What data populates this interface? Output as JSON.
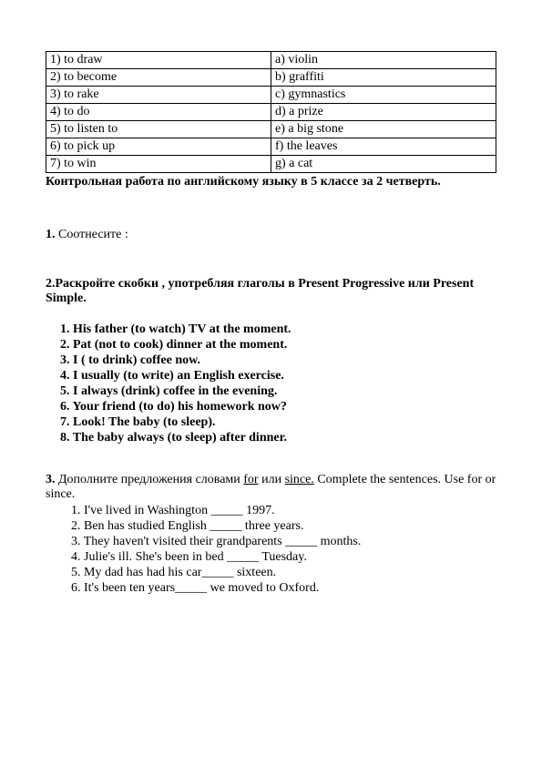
{
  "match_table": {
    "columns": [
      "left",
      "right"
    ],
    "rows": [
      [
        "1) to draw",
        "a) violin"
      ],
      [
        "2) to become",
        "b) graffiti"
      ],
      [
        "3) to rake",
        "c) gymnastics"
      ],
      [
        "4) to do",
        "d) a prize"
      ],
      [
        "5) to listen to",
        "e) a big stone"
      ],
      [
        "6) to pick up",
        "f) the leaves"
      ],
      [
        "7) to win",
        "g) a cat"
      ]
    ],
    "border_color": "#000000",
    "font_size": 14
  },
  "title": "Контрольная работа по английскому языку в 5 классе за 2 четверть.",
  "task1": {
    "num": "1.",
    "text": " Соотнесите :"
  },
  "task2": {
    "intro_a": "2.Раскройте скобки , употребляя глаголы в Present Progressive или Present",
    "intro_b": "Simple.",
    "items": [
      "1. His father (to watch) TV at the moment.",
      "2. Pat (not to cook) dinner at the moment.",
      "3. I ( to drink) coffee now.",
      "4. I usually (to write) an English exercise.",
      " 5. I always (drink) coffee in the evening.",
      "6. Your friend (to do) his homework  now?",
      "7. Look! The baby  (to sleep).",
      "8. The baby always (to sleep) after dinner."
    ]
  },
  "task3": {
    "num": "3.",
    "intro_pre": " Дополните предложения словами ",
    "word_for": "for",
    "intro_mid": " или ",
    "word_since": "since.",
    "intro_post": " Complete the sentences. Use for or since.",
    "items": [
      "1.  I've lived in Washington _____ 1997.",
      "2.  Ben has studied English _____ three years.",
      "3.  They haven't visited their grandparents _____ months.",
      "4.  Julie's ill. She's been in bed _____ Tuesday.",
      "5.  My dad has had his car_____ sixteen.",
      "6.  It's been ten years_____ we moved to Oxford."
    ]
  },
  "colors": {
    "text": "#000000",
    "background": "#ffffff"
  },
  "typography": {
    "font_family": "Times New Roman",
    "base_font_size": 14
  }
}
